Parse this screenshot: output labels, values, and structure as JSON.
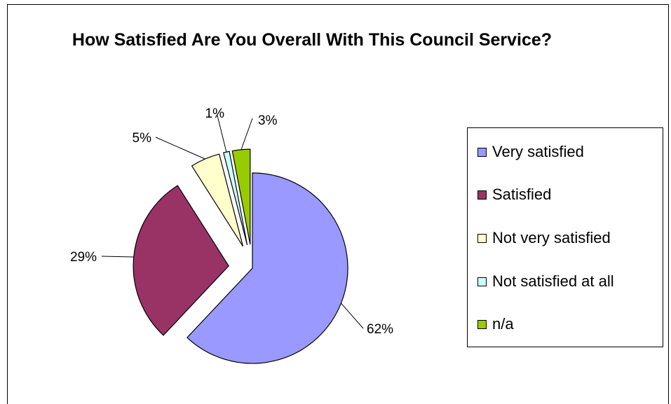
{
  "chart_data": {
    "type": "pie",
    "title": "How Satisfied Are You Overall With This Council Service?",
    "categories": [
      "Very satisfied",
      "Satisfied",
      "Not very satisfied",
      "Not satisfied at all",
      "n/a"
    ],
    "values": [
      62,
      29,
      5,
      1,
      3
    ],
    "data_labels": [
      "62%",
      "29%",
      "5%",
      "1%",
      "3%"
    ],
    "colors": [
      "#9999FF",
      "#993366",
      "#FFFFCC",
      "#CCFFFF",
      "#99CC00"
    ],
    "exploded": true,
    "legend_position": "right"
  }
}
